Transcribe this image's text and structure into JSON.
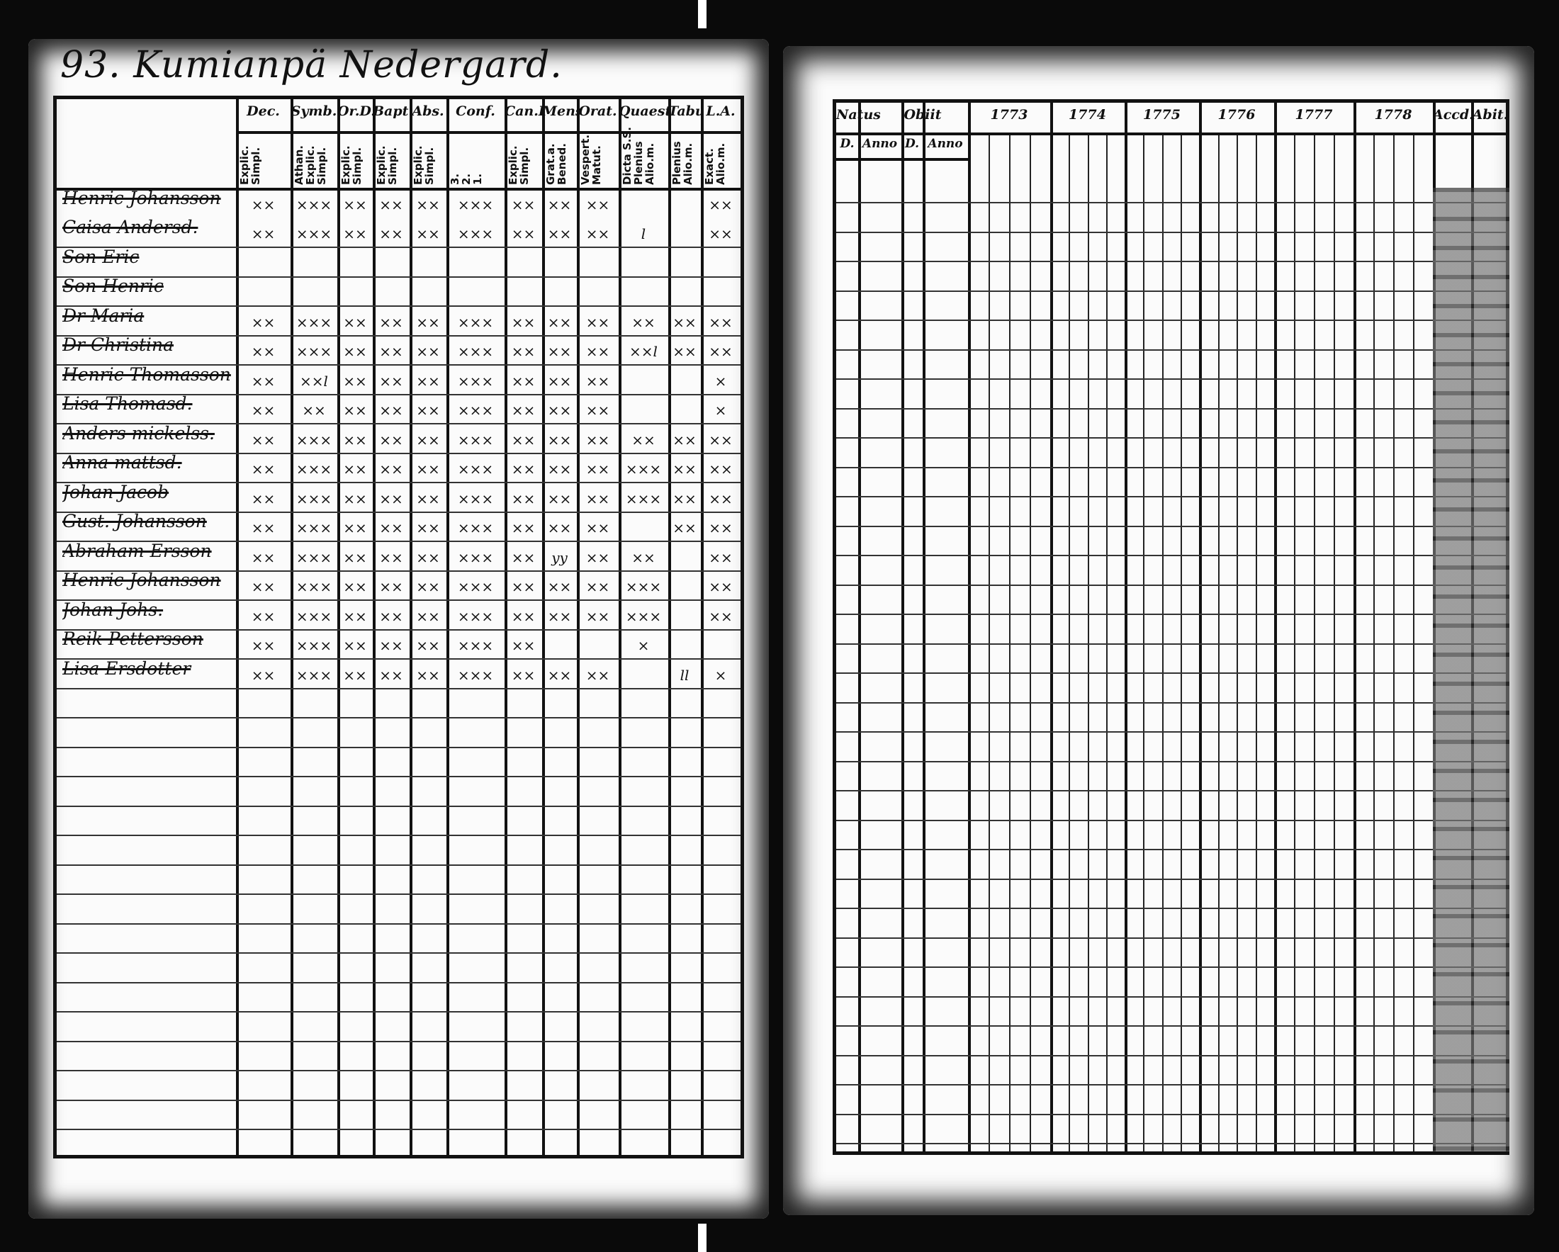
{
  "left_page": {
    "title": "93. Kumianpä Nedergard.",
    "columns": [
      {
        "head": "Dec.",
        "sub": "Explic.\nSimpl."
      },
      {
        "head": "Symb.",
        "sub": "Athan.\nExplic.\nSimpl."
      },
      {
        "head": "Or.D.",
        "sub": "Explic.\nSimpl."
      },
      {
        "head": "Bapt.",
        "sub": "Explic.\nSimpl."
      },
      {
        "head": "Abs.",
        "sub": "Explic.\nSimpl."
      },
      {
        "head": "Conf.",
        "sub": "3.\n2.\n1."
      },
      {
        "head": "Can.D.",
        "sub": "Explic.\nSimpl."
      },
      {
        "head": "Mens.",
        "sub": "Grat.a.\nBened."
      },
      {
        "head": "Orat.",
        "sub": "Vespert.\nMatut."
      },
      {
        "head": "Quaest.",
        "sub": "Dicta S.S.\nPlenius\nAlio.m."
      },
      {
        "head": "Tabu.",
        "sub": "Plenius\nAlio.m."
      },
      {
        "head": "L.A.",
        "sub": "Exact.\nAlio.m."
      }
    ],
    "rows": [
      {
        "name": "Henric Johansson",
        "marks": [
          "xx",
          "xxx",
          "xx",
          "xx",
          "xx",
          "xxx",
          "xx",
          "xx",
          "xx",
          "",
          "",
          "xx"
        ]
      },
      {
        "name": "Caisa Andersd.",
        "marks": [
          "xx",
          "xxx",
          "xx",
          "xx",
          "xx",
          "xxx",
          "xx",
          "xx",
          "xx",
          "l",
          "",
          "xx"
        ]
      },
      {
        "name": "Son Eric",
        "marks": [
          "",
          "",
          "",
          "",
          "",
          "",
          "",
          "",
          "",
          "",
          "",
          ""
        ]
      },
      {
        "name": "Son Henric",
        "marks": [
          "",
          "",
          "",
          "",
          "",
          "",
          "",
          "",
          "",
          "",
          "",
          ""
        ]
      },
      {
        "name": "Dr Maria",
        "marks": [
          "xx",
          "xxx",
          "xx",
          "xx",
          "xx",
          "xxx",
          "xx",
          "xx",
          "xx",
          "xx",
          "xx",
          "xx"
        ]
      },
      {
        "name": "Dr Christina",
        "marks": [
          "xx",
          "xxx",
          "xx",
          "xx",
          "xx",
          "xxx",
          "xx",
          "xx",
          "xx",
          "xxl",
          "xx",
          "xx"
        ]
      },
      {
        "name": "Henric Thomasson",
        "marks": [
          "xx",
          "xxl",
          "xx",
          "xx",
          "xx",
          "xxx",
          "xx",
          "xx",
          "xx",
          "",
          "",
          "x"
        ]
      },
      {
        "name": "Lisa Thomasd.",
        "marks": [
          "xx",
          "xx",
          "xx",
          "xx",
          "xx",
          "xxx",
          "xx",
          "xx",
          "xx",
          "",
          "",
          "x"
        ]
      },
      {
        "name": "Anders mickelss.",
        "marks": [
          "xx",
          "xxx",
          "xx",
          "xx",
          "xx",
          "xxx",
          "xx",
          "xx",
          "xx",
          "xx",
          "xx",
          "xx"
        ]
      },
      {
        "name": "Anna mattsd.",
        "marks": [
          "xx",
          "xxx",
          "xx",
          "xx",
          "xx",
          "xxx",
          "xx",
          "xx",
          "xx",
          "xxx",
          "xx",
          "xx"
        ]
      },
      {
        "name": "Johan Jacob",
        "marks": [
          "xx",
          "xxx",
          "xx",
          "xx",
          "xx",
          "xxx",
          "xx",
          "xx",
          "xx",
          "xxx",
          "xx",
          "xx"
        ]
      },
      {
        "name": "Gust. Johansson",
        "marks": [
          "xx",
          "xxx",
          "xx",
          "xx",
          "xx",
          "xxx",
          "xx",
          "xx",
          "xx",
          "",
          "xx",
          "xx"
        ]
      },
      {
        "name": "Abraham Ersson",
        "marks": [
          "xx",
          "xxx",
          "xx",
          "xx",
          "xx",
          "xxx",
          "xx",
          "yy",
          "xx",
          "xx",
          "",
          "xx"
        ]
      },
      {
        "name": "Henric Johansson",
        "marks": [
          "xx",
          "xxx",
          "xx",
          "xx",
          "xx",
          "xxx",
          "xx",
          "xx",
          "xx",
          "xxx",
          "",
          "xx"
        ]
      },
      {
        "name": "Johan Johs.",
        "marks": [
          "xx",
          "xxx",
          "xx",
          "xx",
          "xx",
          "xxx",
          "xx",
          "xx",
          "xx",
          "xxx",
          "",
          "xx"
        ]
      },
      {
        "name": "Reik Pettersson",
        "marks": [
          "xx",
          "xxx",
          "xx",
          "xx",
          "xx",
          "xxx",
          "xx",
          "",
          "",
          "x",
          "",
          ""
        ]
      },
      {
        "name": "Lisa Ersdotter",
        "marks": [
          "xx",
          "xxx",
          "xx",
          "xx",
          "xx",
          "xxx",
          "xx",
          "xx",
          "xx",
          "",
          "ll",
          "x"
        ]
      }
    ]
  },
  "right_page": {
    "columns": [
      {
        "head": "Natus",
        "sub": "D."
      },
      {
        "head": "",
        "sub": "Anno"
      },
      {
        "head": "Obiit",
        "sub": "D."
      },
      {
        "head": "",
        "sub": "Anno"
      },
      {
        "head": "1773",
        "sub": ""
      },
      {
        "head": "1774",
        "sub": ""
      },
      {
        "head": "1775",
        "sub": ""
      },
      {
        "head": "1776",
        "sub": ""
      },
      {
        "head": "1777",
        "sub": ""
      },
      {
        "head": "1778",
        "sub": ""
      },
      {
        "head": "Accd.",
        "sub": ""
      },
      {
        "head": "Abit.",
        "sub": ""
      }
    ]
  }
}
